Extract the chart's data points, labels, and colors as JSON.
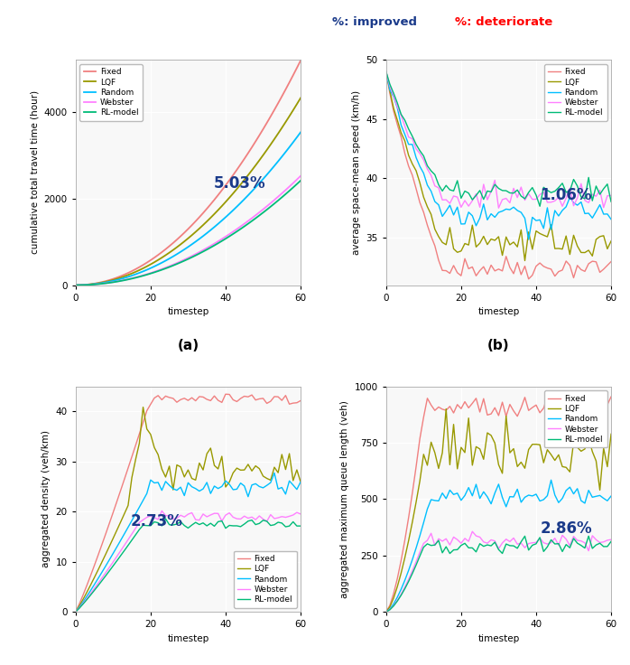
{
  "colors": {
    "Fixed": "#F08080",
    "LQF": "#999900",
    "Random": "#00BFFF",
    "Webster": "#FF80FF",
    "RL-model": "#00BB77"
  },
  "labels": [
    "Fixed",
    "LQF",
    "Random",
    "Webster",
    "RL-model"
  ],
  "ylabel_a": "cumulative total travel time (hour)",
  "ylabel_b": "average space-mean speed (km/h)",
  "ylabel_c": "aggregated density (veh/km)",
  "ylabel_d": "aggregated maximum queue length (veh)",
  "xlabel": "timestep",
  "pct_a": "5.03%",
  "pct_b": "1.06%",
  "pct_c": "2.73%",
  "pct_d": "2.86%",
  "header_blue": "%: improved",
  "header_red": "%: deteriorate",
  "ylim_a": [
    0,
    5200
  ],
  "yticks_a": [
    0,
    2000,
    4000
  ],
  "ylim_b": [
    31,
    50
  ],
  "yticks_b": [
    35,
    40,
    45,
    50
  ],
  "ylim_c": [
    0,
    45
  ],
  "yticks_c": [
    0,
    10,
    20,
    30,
    40
  ],
  "ylim_d": [
    0,
    1000
  ],
  "yticks_d": [
    0,
    250,
    500,
    750,
    1000
  ],
  "xlim": [
    0,
    60
  ],
  "xticks": [
    0,
    20,
    40,
    60
  ],
  "bg_color": "#F8F8F8"
}
